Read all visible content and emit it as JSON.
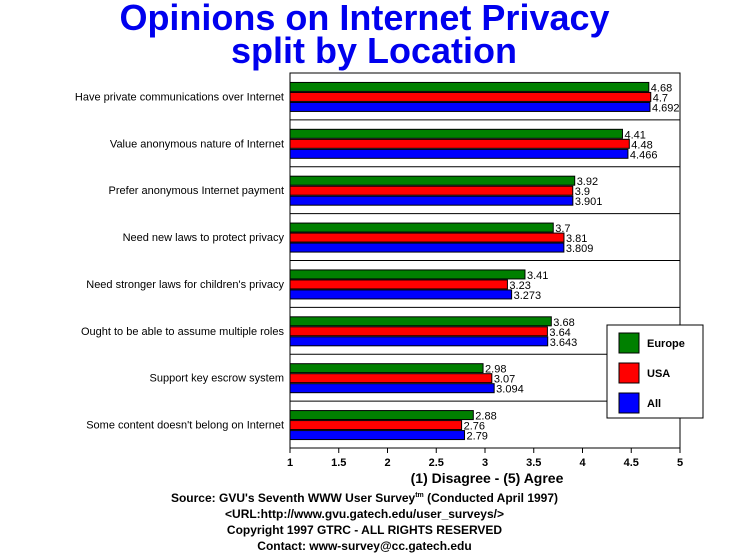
{
  "title_line1": "Opinions on Internet Privacy",
  "title_line2": "split by Location",
  "footer": {
    "source_prefix": "Source: GVU's Seventh WWW User Survey",
    "tm": "tm",
    "source_suffix": " (Conducted April 1997)",
    "url": "<URL:http://www.gvu.gatech.edu/user_surveys/>",
    "copyright": "Copyright 1997 GTRC - ALL RIGHTS RESERVED",
    "contact": "Contact: www-survey@cc.gatech.edu"
  },
  "chart_data": {
    "type": "bar",
    "orientation": "horizontal",
    "categories": [
      "Have private communications over Internet",
      "Value anonymous nature of Internet",
      "Prefer anonymous Internet payment",
      "Need new laws to protect privacy",
      "Need stronger laws for children's privacy",
      "Ought to be able to assume multiple roles",
      "Support key escrow system",
      "Some content doesn't belong on Internet"
    ],
    "series": [
      {
        "name": "Europe",
        "color": "#008000",
        "values": [
          4.68,
          4.41,
          3.92,
          3.7,
          3.41,
          3.68,
          2.98,
          2.88
        ],
        "labels": [
          "4.68",
          "4.41",
          "3.92",
          "3.7",
          "3.41",
          "3.68",
          "2.98",
          "2.88"
        ]
      },
      {
        "name": "USA",
        "color": "#ff0000",
        "values": [
          4.7,
          4.48,
          3.9,
          3.81,
          3.23,
          3.64,
          3.07,
          2.76
        ],
        "labels": [
          "4.7",
          "4.48",
          "3.9",
          "3.81",
          "3.23",
          "3.64",
          "3.07",
          "2.76"
        ]
      },
      {
        "name": "All",
        "color": "#0000ff",
        "values": [
          4.692,
          4.466,
          3.901,
          3.809,
          3.273,
          3.643,
          3.094,
          2.79
        ],
        "labels": [
          "4.692",
          "4.466",
          "3.901",
          "3.809",
          "3.273",
          "3.643",
          "3.094",
          "2.79"
        ]
      }
    ],
    "xlabel": "(1) Disagree - (5) Agree",
    "xlim": [
      1,
      5
    ],
    "xticks": [
      "1",
      "1.5",
      "2",
      "2.5",
      "3",
      "3.5",
      "4",
      "4.5",
      "5"
    ],
    "legend_position": "right",
    "grid": "horizontal separators"
  }
}
